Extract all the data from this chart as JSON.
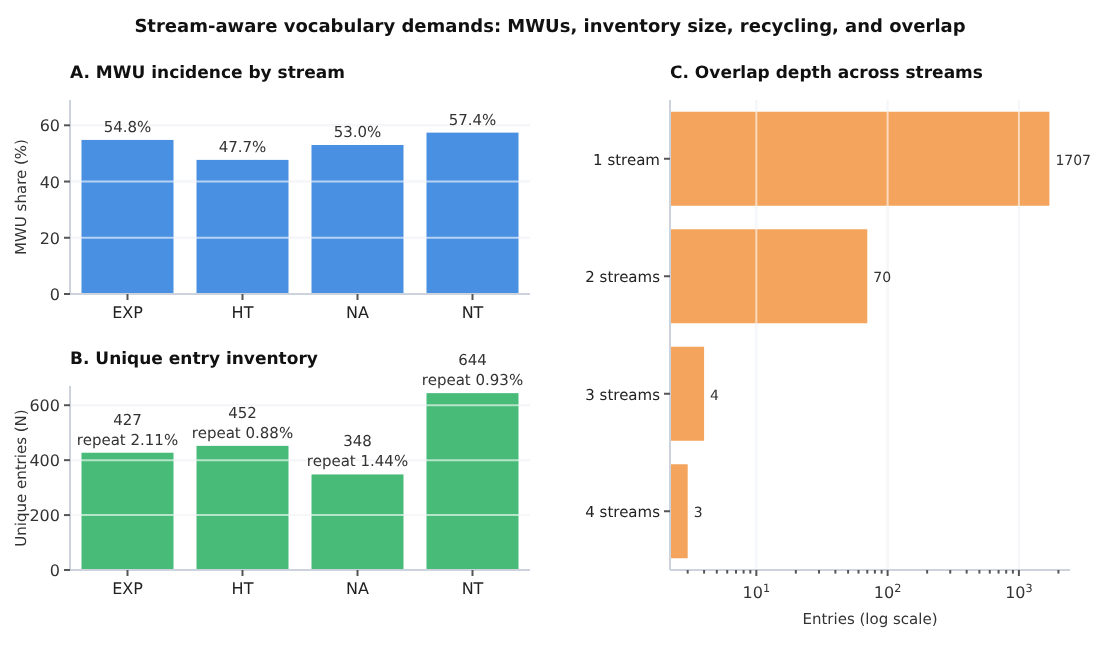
{
  "chart_data": [
    {
      "type": "bar",
      "title": "A. MWU incidence by stream",
      "annotations": [
        "Stream-aware vocabulary demands: MWUs, inventory size, recycling, and overlap"
      ],
      "ylabel": "MWU share (%)",
      "categories": [
        "EXP",
        "HT",
        "NA",
        "NT"
      ],
      "values": [
        54.8,
        47.7,
        53.0,
        57.4
      ],
      "value_labels": [
        "54.8%",
        "47.7%",
        "53.0%",
        "57.4%"
      ],
      "color": "#4a90e2",
      "ylim": [
        0,
        69
      ],
      "yticks": [
        0,
        20,
        40,
        60
      ],
      "grid": "y"
    },
    {
      "type": "bar",
      "title": "B. Unique entry inventory",
      "ylabel": "Unique entries (N)",
      "categories": [
        "EXP",
        "HT",
        "NA",
        "NT"
      ],
      "values": [
        427,
        452,
        348,
        644
      ],
      "value_labels": [
        "427\nrepeat 2.11%",
        "452\nrepeat 0.88%",
        "348\nrepeat 1.44%",
        "644\nrepeat 0.93%"
      ],
      "color": "#48bb78",
      "ylim": [
        0,
        670
      ],
      "yticks": [
        0,
        200,
        400,
        600
      ],
      "grid": "y"
    },
    {
      "type": "bar",
      "orientation": "horizontal",
      "log": "x",
      "title": "C. Overlap depth across streams",
      "xlabel": "Entries (log scale)",
      "categories": [
        "1 stream",
        "2 streams",
        "3 streams",
        "4 streams"
      ],
      "values": [
        1707,
        70,
        4,
        3
      ],
      "data_labels": true,
      "color": "#f4a45c",
      "xlim": [
        2.2,
        2450
      ],
      "xticks": [
        {
          "value": 3,
          "label": null
        },
        {
          "value": 4,
          "label": null
        },
        {
          "value": 5,
          "label": null
        },
        {
          "value": 6,
          "label": null
        },
        {
          "value": 7,
          "label": null
        },
        {
          "value": 8,
          "label": null
        },
        {
          "value": 9,
          "label": null
        },
        {
          "value": 10,
          "label": "10$^{1}$"
        },
        {
          "value": 20,
          "label": null
        },
        {
          "value": 30,
          "label": null
        },
        {
          "value": 40,
          "label": null
        },
        {
          "value": 50,
          "label": null
        },
        {
          "value": 60,
          "label": null
        },
        {
          "value": 70,
          "label": null
        },
        {
          "value": 80,
          "label": null
        },
        {
          "value": 90,
          "label": null
        },
        {
          "value": 100,
          "label": "10$^{2}$"
        },
        {
          "value": 200,
          "label": null
        },
        {
          "value": 300,
          "label": null
        },
        {
          "value": 400,
          "label": null
        },
        {
          "value": 500,
          "label": null
        },
        {
          "value": 600,
          "label": null
        },
        {
          "value": 700,
          "label": null
        },
        {
          "value": 800,
          "label": null
        },
        {
          "value": 900,
          "label": null
        },
        {
          "value": 1000,
          "label": "10$^{3}$"
        },
        {
          "value": 2000,
          "label": null
        }
      ],
      "grid": "x"
    }
  ]
}
